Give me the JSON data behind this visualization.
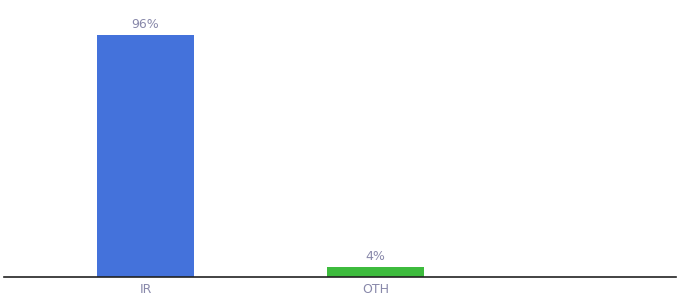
{
  "categories": [
    "IR",
    "OTH"
  ],
  "values": [
    96,
    4
  ],
  "bar_colors": [
    "#4472db",
    "#3dbb3d"
  ],
  "label_texts": [
    "96%",
    "4%"
  ],
  "background_color": "#ffffff",
  "text_color": "#8888aa",
  "ylim": [
    0,
    108
  ],
  "bar_width": 0.55,
  "figsize": [
    6.8,
    3.0
  ],
  "dpi": 100,
  "label_fontsize": 9,
  "tick_fontsize": 9,
  "xlim": [
    -0.3,
    3.5
  ]
}
